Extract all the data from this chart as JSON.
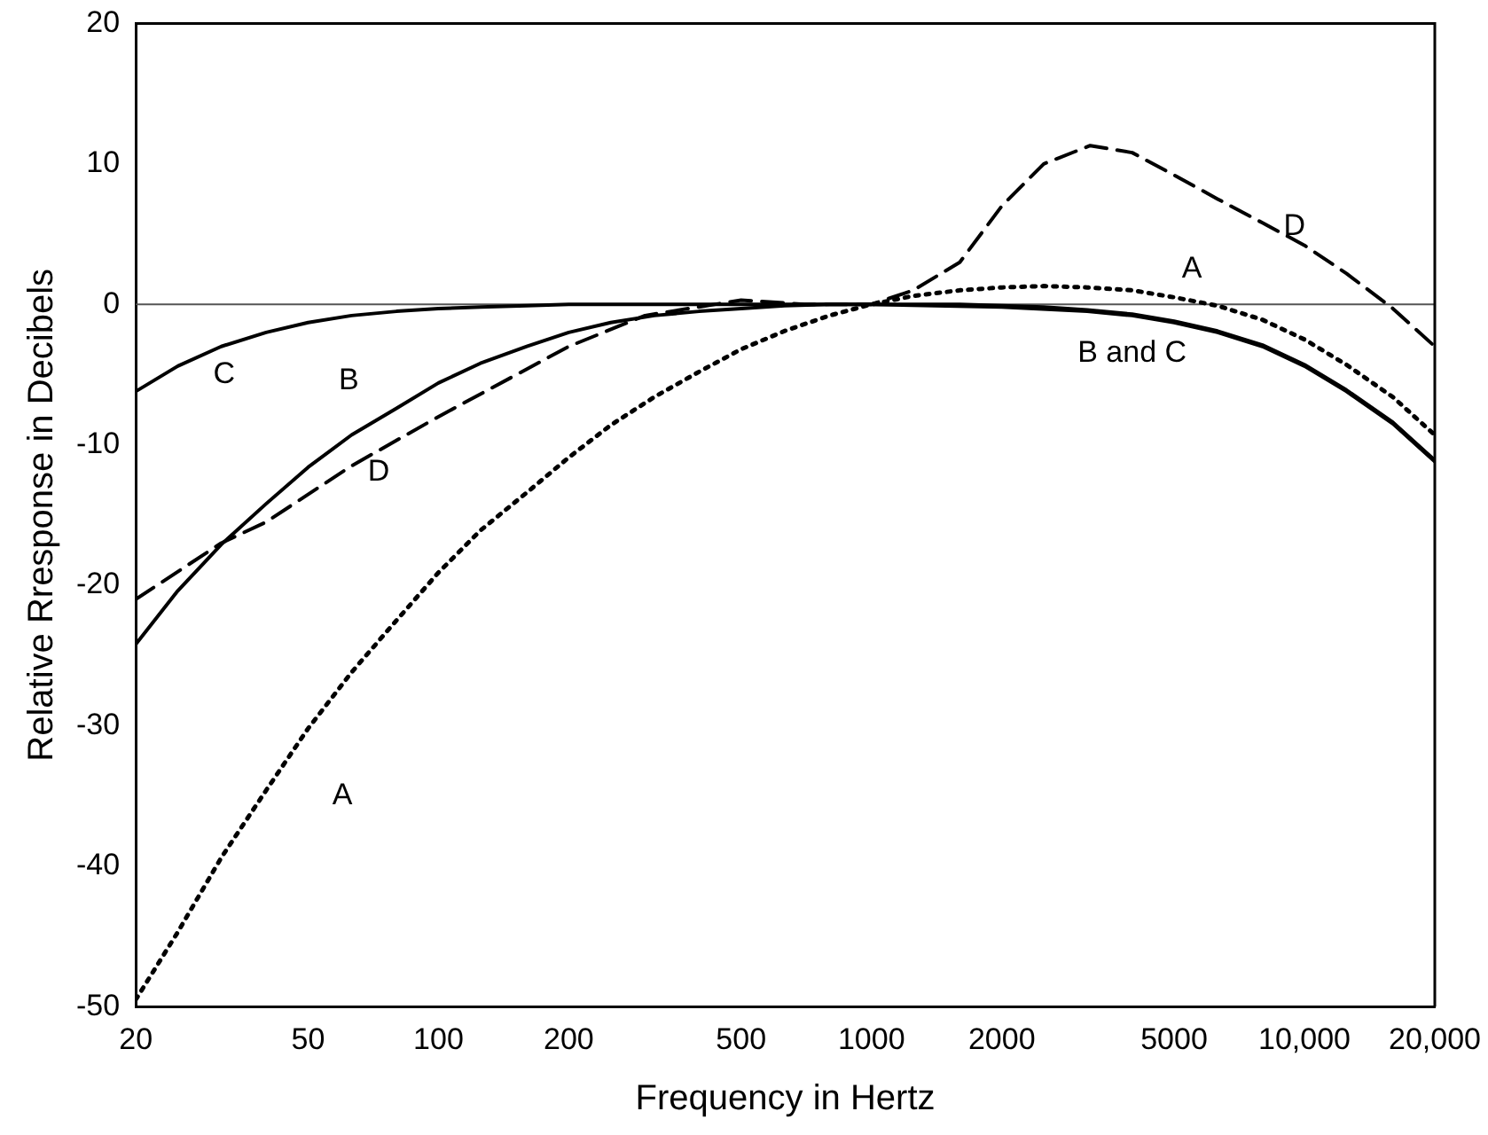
{
  "chart_data": {
    "type": "line",
    "xlabel": "Frequency in Hertz",
    "ylabel": "Relative Rresponse in Decibels",
    "log": "x",
    "grid": false,
    "legend": false,
    "marker": "none",
    "xlim": [
      20,
      20000
    ],
    "xticks": [
      20,
      50,
      100,
      200,
      500,
      1000,
      2000,
      5000,
      {
        "value": 10000,
        "label": "10,000"
      },
      {
        "value": 20000,
        "label": "20,000"
      }
    ],
    "ylim": [
      -50,
      20
    ],
    "yticks": [
      -50,
      -40,
      -30,
      -20,
      -10,
      0,
      10,
      20
    ],
    "ref_lines": [
      {
        "axis": "y",
        "value": 0,
        "color": "#555555",
        "line_style": "solid"
      }
    ],
    "series": [
      {
        "color": "#000000",
        "line_style": "dotted",
        "x": [
          20,
          25,
          31.5,
          40,
          50,
          63,
          80,
          100,
          125,
          160,
          200,
          250,
          315,
          400,
          500,
          630,
          800,
          1000,
          1250,
          1600,
          2000,
          2500,
          3150,
          4000,
          5000,
          6300,
          8000,
          10000,
          12500,
          16000,
          20000
        ],
        "values": [
          -49.5,
          -44.7,
          -39.4,
          -34.6,
          -30.2,
          -26.2,
          -22.5,
          -19.1,
          -16.1,
          -13.4,
          -10.9,
          -8.6,
          -6.6,
          -4.8,
          -3.2,
          -1.9,
          -0.8,
          0,
          0.6,
          1.0,
          1.2,
          1.3,
          1.2,
          1.0,
          0.5,
          -0.1,
          -1.1,
          -2.5,
          -4.3,
          -6.6,
          -9.3
        ]
      },
      {
        "color": "#000000",
        "line_style": "solid",
        "x": [
          20,
          25,
          31.5,
          40,
          50,
          63,
          80,
          100,
          125,
          160,
          200,
          250,
          315,
          400,
          500,
          630,
          800,
          1000,
          1250,
          1600,
          2000,
          2500,
          3150,
          4000,
          5000,
          6300,
          8000,
          10000,
          12500,
          16000,
          20000
        ],
        "values": [
          -24.2,
          -20.4,
          -17.1,
          -14.2,
          -11.6,
          -9.3,
          -7.4,
          -5.6,
          -4.2,
          -3.0,
          -2.0,
          -1.3,
          -0.8,
          -0.5,
          -0.3,
          -0.1,
          0,
          0,
          0,
          0,
          -0.1,
          -0.2,
          -0.4,
          -0.7,
          -1.2,
          -1.9,
          -2.9,
          -4.3,
          -6.1,
          -8.4,
          -11.1
        ]
      },
      {
        "color": "#000000",
        "line_style": "solid",
        "x": [
          20,
          25,
          31.5,
          40,
          50,
          63,
          80,
          100,
          125,
          160,
          200,
          500,
          1000,
          2000,
          3150,
          4000,
          5000,
          6300,
          8000,
          10000,
          12500,
          16000,
          20000
        ],
        "values": [
          -6.2,
          -4.4,
          -3.0,
          -2.0,
          -1.3,
          -0.8,
          -0.5,
          -0.3,
          -0.2,
          -0.1,
          0,
          0,
          0,
          -0.2,
          -0.5,
          -0.8,
          -1.3,
          -2.0,
          -3.0,
          -4.4,
          -6.2,
          -8.5,
          -11.2
        ]
      },
      {
        "color": "#000000",
        "line_style": "dashed",
        "x": [
          20,
          31.5,
          40,
          63,
          100,
          200,
          300,
          500,
          700,
          1000,
          1250,
          1600,
          2000,
          2500,
          3200,
          4000,
          5000,
          6300,
          8000,
          10000,
          12500,
          16000,
          20000
        ],
        "values": [
          -21,
          -17,
          -15.5,
          -11.5,
          -8,
          -3,
          -0.8,
          0.3,
          0,
          0,
          1,
          3,
          7,
          10,
          11.3,
          10.8,
          9.2,
          7.5,
          5.8,
          4.2,
          2.2,
          -0.3,
          -3
        ]
      }
    ],
    "annotations": [
      "A",
      "A",
      "B",
      "C",
      "D",
      "D",
      "B and C"
    ]
  }
}
